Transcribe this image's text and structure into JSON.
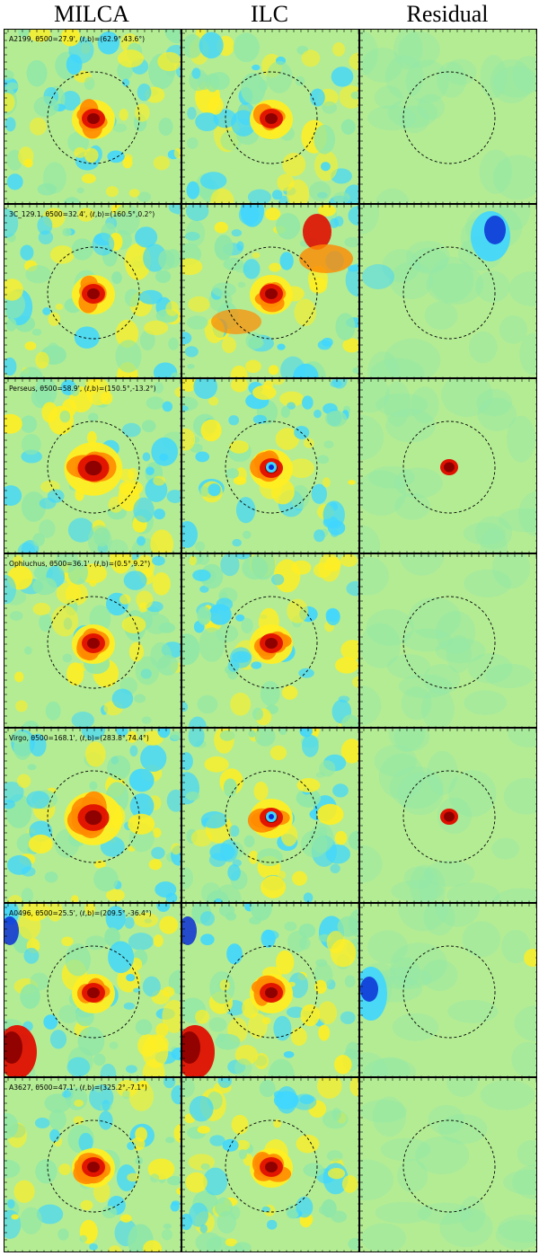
{
  "columns": [
    {
      "key": "milca",
      "title": "MILCA"
    },
    {
      "key": "ilc",
      "title": "ILC"
    },
    {
      "key": "residual",
      "title": "Residual"
    }
  ],
  "colormap": {
    "deep_blue": "#0a2fd6",
    "cyan": "#3fd6ff",
    "light_green": "#8fe7a8",
    "background_green": "#b4ec94",
    "yellow": "#ffee22",
    "orange": "#ff8a00",
    "red": "#e01000",
    "dark_red": "#8a0000",
    "circle_stroke": "#000000"
  },
  "clusters": [
    {
      "name": "A2199",
      "label": "A2199, θ500=27.9', (ℓ,b)=(62.9°,43.6°)",
      "milca": "compact-core",
      "ilc": "compact-core",
      "residual": "flat"
    },
    {
      "name": "3C_129.1",
      "label": "3C_129.1, θ500=32.4', (ℓ,b)=(160.5°,0.2°)",
      "milca": "core-noisy",
      "ilc": "core-strong-emission",
      "residual": "blue-blob-upper-right"
    },
    {
      "name": "Perseus",
      "label": "Perseus, θ500=58.9', (ℓ,b)=(150.5°,-13.2°)",
      "milca": "extended-core",
      "ilc": "core-with-point-source",
      "residual": "central-point-source"
    },
    {
      "name": "Ophiuchus",
      "label": "Ophiuchus, θ500=36.1', (ℓ,b)=(0.5°,9.2°)",
      "milca": "compact-core",
      "ilc": "compact-core",
      "residual": "flat"
    },
    {
      "name": "Virgo",
      "label": "Virgo, θ500=168.1', (ℓ,b)=(283.8°,74.4°)",
      "milca": "extended-core",
      "ilc": "core-with-point-source",
      "residual": "central-point-source"
    },
    {
      "name": "A0496",
      "label": "A0496, θ500=25.5', (ℓ,b)=(209.5°,-36.4°)",
      "milca": "core-edge-blob",
      "ilc": "core-edge-blob",
      "residual": "blue-left-edge"
    },
    {
      "name": "A3627",
      "label": "A3627, θ500=47.1', (ℓ,b)=(325.2°,-7.1°)",
      "milca": "clumpy-core",
      "ilc": "clumpy-core",
      "residual": "flat"
    }
  ]
}
